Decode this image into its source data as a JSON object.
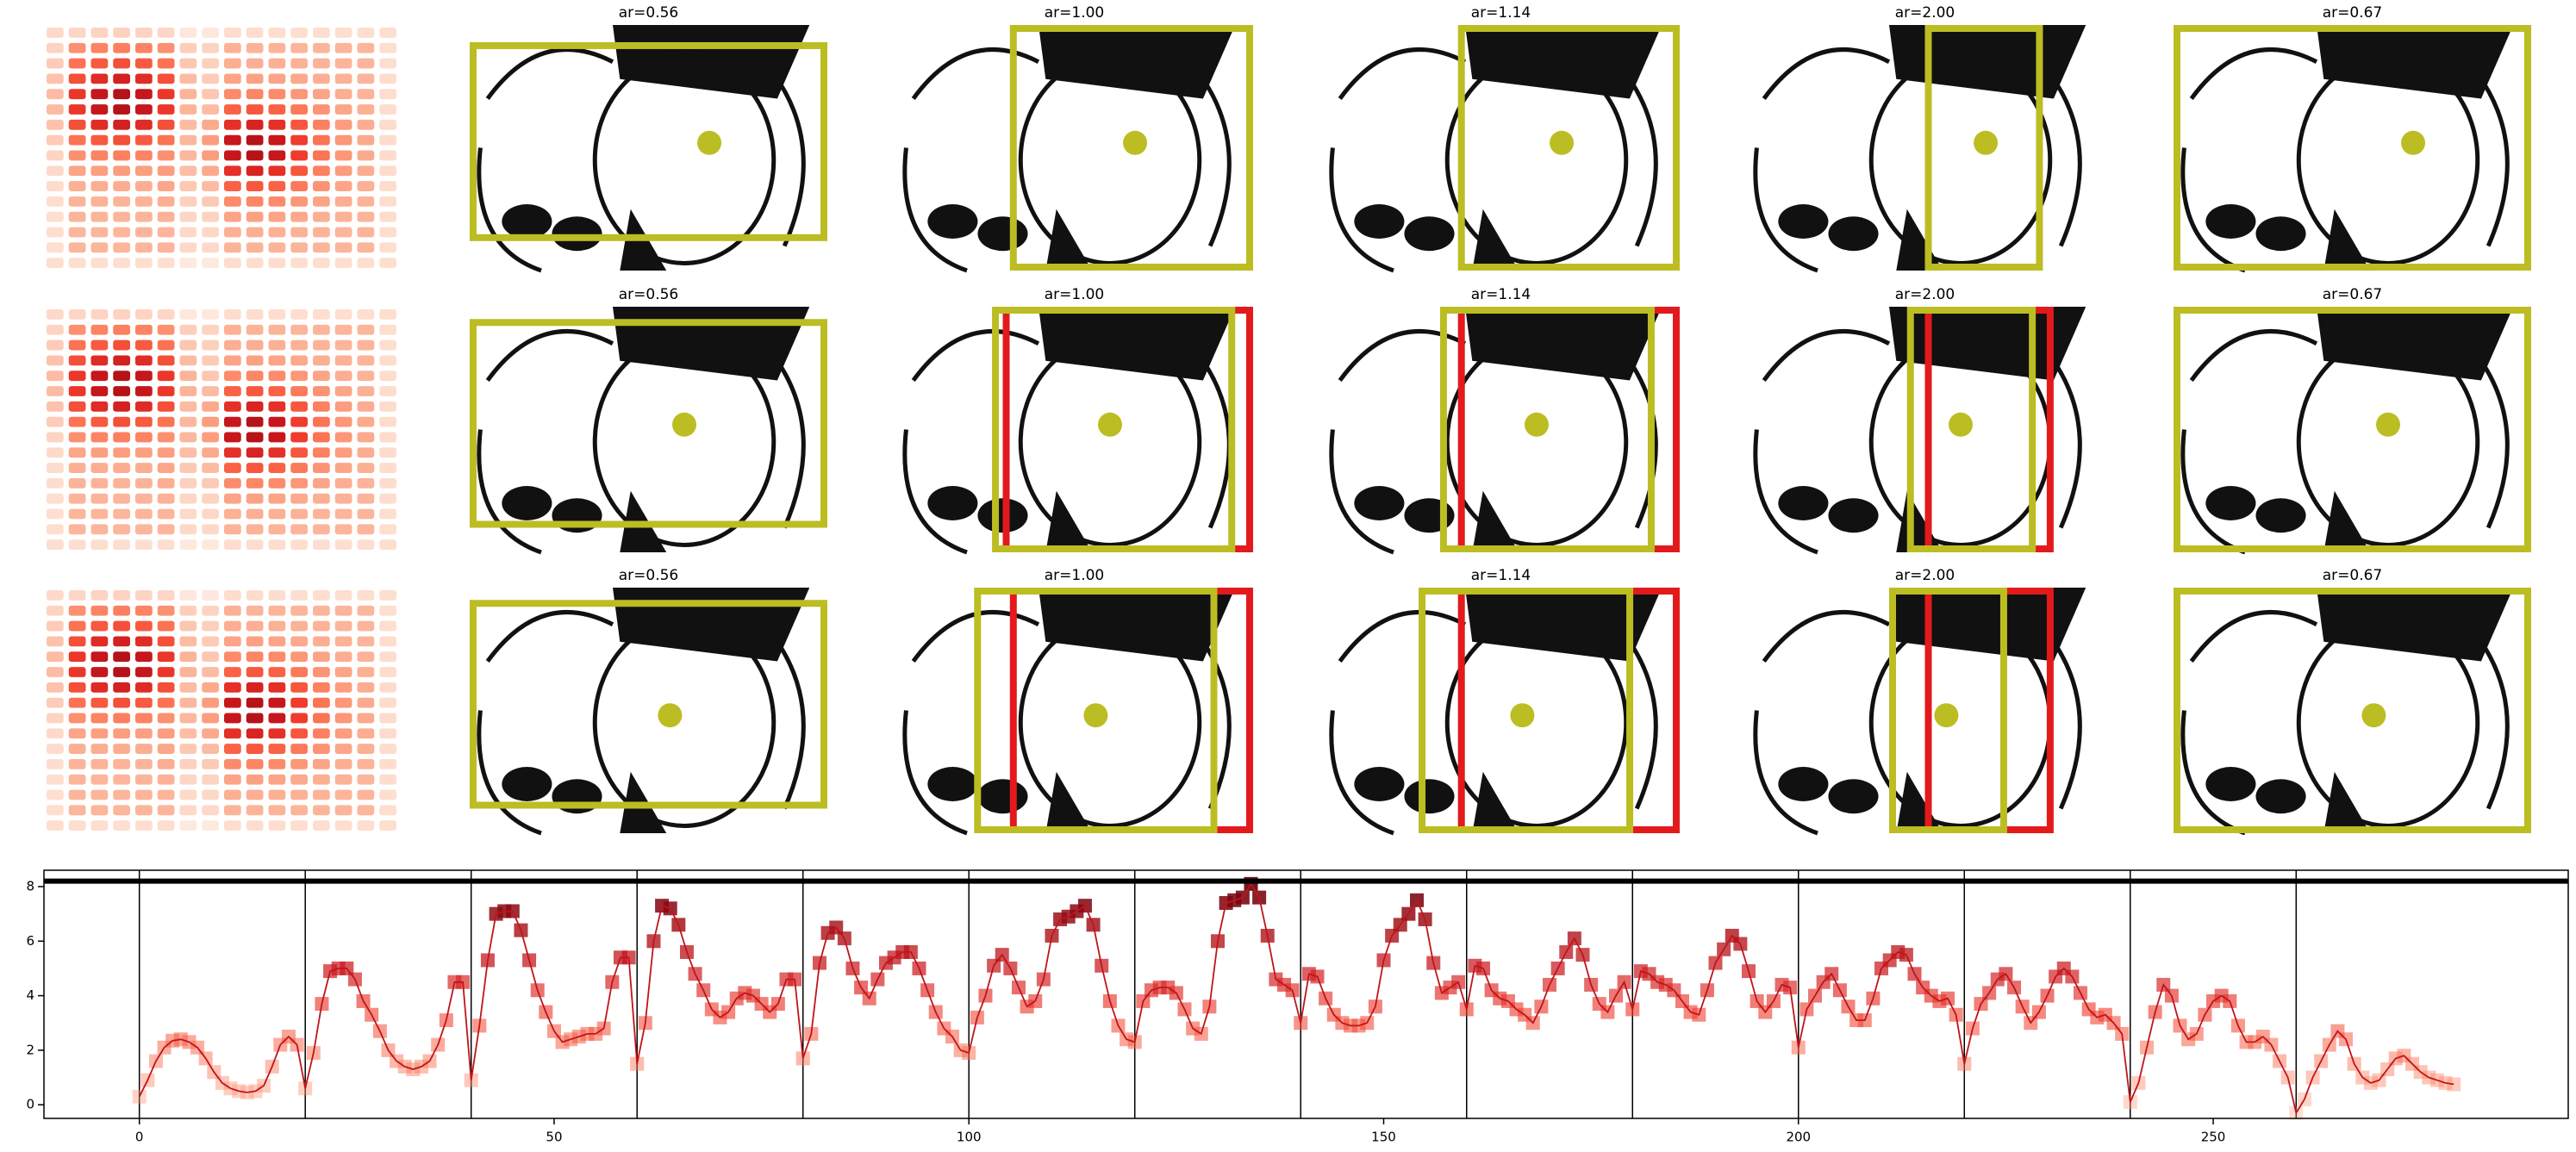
{
  "panel_titles": [
    [
      "ar=0.56",
      "ar=1.00",
      "ar=1.14",
      "ar=2.00",
      "ar=0.67"
    ],
    [
      "ar=0.56",
      "ar=1.00",
      "ar=1.14",
      "ar=2.00",
      "ar=0.67"
    ],
    [
      "ar=0.56",
      "ar=1.00",
      "ar=1.14",
      "ar=2.00",
      "ar=0.67"
    ]
  ],
  "chart_data": {
    "type": "line",
    "color": "#c0141b",
    "x": [
      0,
      1,
      2,
      3,
      4,
      5,
      6,
      7,
      8,
      9,
      10,
      11,
      12,
      13,
      14,
      15,
      16,
      17,
      18,
      19,
      20,
      21,
      22,
      23,
      24,
      25,
      26,
      27,
      28,
      29,
      30,
      31,
      32,
      33,
      34,
      35,
      36,
      37,
      38,
      39,
      40,
      41,
      42,
      43,
      44,
      45,
      46,
      47,
      48,
      49,
      50,
      51,
      52,
      53,
      54,
      55,
      56,
      57,
      58,
      59,
      60,
      61,
      62,
      63,
      64,
      65,
      66,
      67,
      68,
      69,
      70,
      71,
      72,
      73,
      74,
      75,
      76,
      77,
      78,
      79,
      80,
      81,
      82,
      83,
      84,
      85,
      86,
      87,
      88,
      89,
      90,
      91,
      92,
      93,
      94,
      95,
      96,
      97,
      98,
      99,
      100,
      101,
      102,
      103,
      104,
      105,
      106,
      107,
      108,
      109,
      110,
      111,
      112,
      113,
      114,
      115,
      116,
      117,
      118,
      119,
      120,
      121,
      122,
      123,
      124,
      125,
      126,
      127,
      128,
      129,
      130,
      131,
      132,
      133,
      134,
      135,
      136,
      137,
      138,
      139,
      140,
      141,
      142,
      143,
      144,
      145,
      146,
      147,
      148,
      149,
      150,
      151,
      152,
      153,
      154,
      155,
      156,
      157,
      158,
      159,
      160,
      161,
      162,
      163,
      164,
      165,
      166,
      167,
      168,
      169,
      170,
      171,
      172,
      173,
      174,
      175,
      176,
      177,
      178,
      179,
      180,
      181,
      182,
      183,
      184,
      185,
      186,
      187,
      188,
      189,
      190,
      191,
      192,
      193,
      194,
      195,
      196,
      197,
      198,
      199,
      200,
      201,
      202,
      203,
      204,
      205,
      206,
      207,
      208,
      209,
      210,
      211,
      212,
      213,
      214,
      215,
      216,
      217,
      218,
      219,
      220,
      221,
      222,
      223,
      224,
      225,
      226,
      227,
      228,
      229,
      230,
      231,
      232,
      233,
      234,
      235,
      236,
      237,
      238,
      239,
      240,
      241,
      242,
      243,
      244,
      245,
      246,
      247,
      248,
      249,
      250,
      251,
      252,
      253,
      254,
      255,
      256,
      257,
      258,
      259,
      260,
      261,
      262,
      263,
      264,
      265,
      266,
      267,
      268,
      269,
      270,
      271,
      272,
      273,
      274,
      275,
      276,
      277,
      278,
      279
    ],
    "values": [
      0.3,
      0.9,
      1.6,
      2.1,
      2.35,
      2.4,
      2.3,
      2.1,
      1.7,
      1.2,
      0.8,
      0.6,
      0.5,
      0.45,
      0.5,
      0.7,
      1.4,
      2.2,
      2.5,
      2.2,
      0.6,
      1.9,
      3.7,
      4.9,
      5.0,
      5.0,
      4.6,
      3.8,
      3.3,
      2.7,
      2.0,
      1.6,
      1.4,
      1.3,
      1.4,
      1.6,
      2.2,
      3.1,
      4.5,
      4.5,
      0.9,
      2.9,
      5.3,
      7.0,
      7.1,
      7.1,
      6.4,
      5.3,
      4.2,
      3.4,
      2.7,
      2.3,
      2.4,
      2.5,
      2.6,
      2.6,
      2.8,
      4.5,
      5.4,
      5.4,
      1.5,
      3.0,
      6.0,
      7.3,
      7.2,
      6.6,
      5.6,
      4.8,
      4.2,
      3.5,
      3.2,
      3.4,
      3.9,
      4.1,
      4.0,
      3.7,
      3.4,
      3.7,
      4.6,
      4.6,
      1.7,
      2.6,
      5.2,
      6.3,
      6.5,
      6.1,
      5.0,
      4.3,
      3.9,
      4.6,
      5.2,
      5.4,
      5.6,
      5.6,
      5.0,
      4.2,
      3.4,
      2.8,
      2.5,
      2.0,
      1.9,
      3.2,
      4.0,
      5.1,
      5.5,
      5.0,
      4.3,
      3.6,
      3.8,
      4.6,
      6.2,
      6.8,
      6.9,
      7.1,
      7.3,
      6.6,
      5.1,
      3.8,
      2.9,
      2.4,
      2.3,
      3.8,
      4.2,
      4.3,
      4.3,
      4.1,
      3.5,
      2.8,
      2.6,
      3.6,
      6.0,
      7.4,
      7.5,
      7.6,
      8.1,
      7.6,
      6.2,
      4.6,
      4.4,
      4.2,
      3.0,
      4.8,
      4.7,
      3.9,
      3.3,
      3.0,
      2.9,
      2.9,
      3.0,
      3.6,
      5.3,
      6.2,
      6.6,
      7.0,
      7.5,
      6.8,
      5.2,
      4.1,
      4.3,
      4.5,
      3.5,
      5.1,
      5.0,
      4.2,
      3.9,
      3.8,
      3.5,
      3.3,
      3.0,
      3.6,
      4.4,
      5.0,
      5.6,
      6.1,
      5.5,
      4.4,
      3.7,
      3.4,
      4.0,
      4.5,
      3.5,
      4.9,
      4.8,
      4.5,
      4.4,
      4.2,
      3.8,
      3.4,
      3.3,
      4.2,
      5.2,
      5.7,
      6.2,
      5.9,
      4.9,
      3.8,
      3.4,
      3.8,
      4.4,
      4.3,
      2.1,
      3.5,
      4.0,
      4.5,
      4.8,
      4.2,
      3.6,
      3.1,
      3.1,
      3.9,
      5.0,
      5.3,
      5.6,
      5.5,
      4.8,
      4.3,
      4.0,
      3.8,
      3.9,
      3.3,
      1.5,
      2.8,
      3.7,
      4.1,
      4.6,
      4.8,
      4.3,
      3.6,
      3.0,
      3.4,
      4.0,
      4.7,
      5.0,
      4.7,
      4.1,
      3.5,
      3.2,
      3.3,
      3.0,
      2.6,
      0.1,
      0.8,
      2.1,
      3.4,
      4.4,
      4.0,
      2.9,
      2.4,
      2.6,
      3.3,
      3.8,
      4.0,
      3.8,
      2.9,
      2.3,
      2.3,
      2.5,
      2.2,
      1.6,
      1.0,
      -0.3,
      0.2,
      1.0,
      1.6,
      2.2,
      2.7,
      2.4,
      1.5,
      1.0,
      0.8,
      0.9,
      1.3,
      1.7,
      1.8,
      1.5,
      1.2,
      1.0,
      0.9,
      0.8,
      0.75
    ],
    "xlim": [
      -11.5,
      292.8
    ],
    "ylim": [
      -0.5,
      8.6
    ],
    "xticks": [
      0,
      50,
      100,
      150,
      200,
      250
    ],
    "yticks": [
      0,
      2,
      4,
      6,
      8
    ],
    "hline": 8.2,
    "vlines": [
      0,
      20,
      40,
      60,
      80,
      100,
      120,
      140,
      160,
      180,
      200,
      220,
      240,
      260
    ]
  }
}
